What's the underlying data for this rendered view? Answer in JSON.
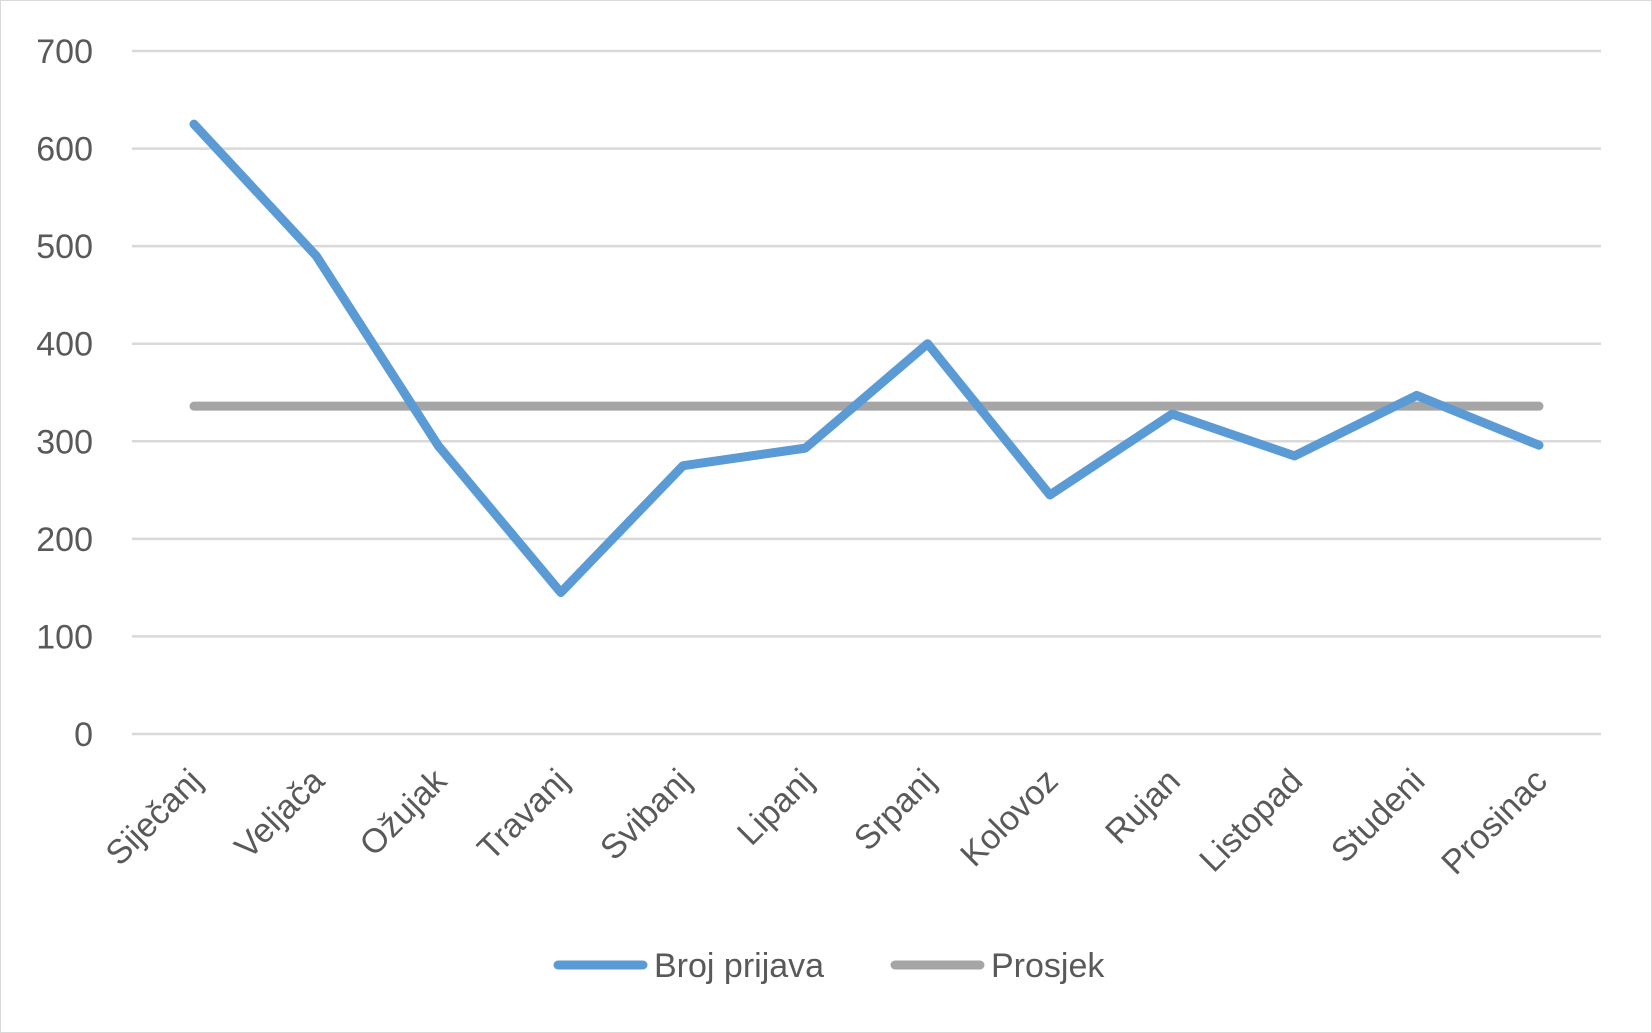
{
  "chart_data": {
    "type": "line",
    "categories": [
      "Siječanj",
      "Veljača",
      "Ožujak",
      "Travanj",
      "Svibanj",
      "Lipanj",
      "Srpanj",
      "Kolovoz",
      "Rujan",
      "Listopad",
      "Studeni",
      "Prosinac"
    ],
    "series": [
      {
        "name": "Broj prijava",
        "color": "#5b9bd5",
        "values": [
          625,
          490,
          295,
          145,
          275,
          293,
          400,
          245,
          328,
          285,
          347,
          296
        ]
      },
      {
        "name": "Prosjek",
        "color": "#a5a5a5",
        "values": [
          336,
          336,
          336,
          336,
          336,
          336,
          336,
          336,
          336,
          336,
          336,
          336
        ]
      }
    ],
    "ylim": [
      0,
      700
    ],
    "yticks": [
      "0",
      "100",
      "200",
      "300",
      "400",
      "500",
      "600",
      "700"
    ],
    "grid": true,
    "legend_position": "bottom",
    "title": "",
    "xlabel": "",
    "ylabel": ""
  }
}
